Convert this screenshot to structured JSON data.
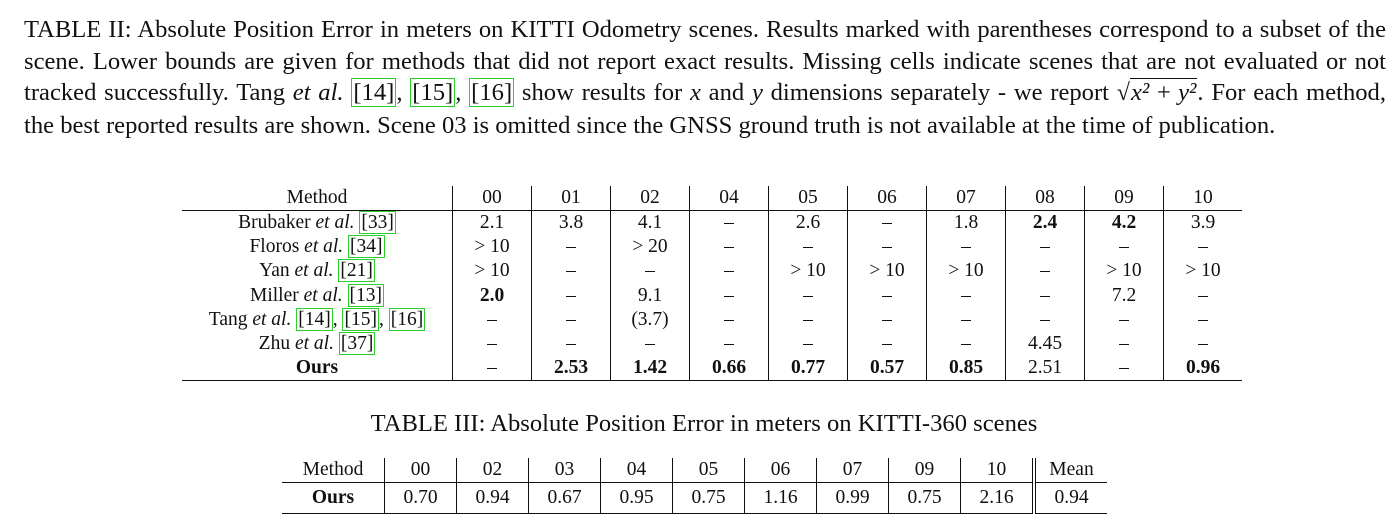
{
  "table2": {
    "caption": {
      "p1": "TABLE II: Absolute Position Error in meters on KITTI Odometry scenes. Results marked with parentheses correspond to a subset of the scene. Lower bounds are given for methods that did not report exact results. Missing cells indicate scenes that are not evaluated or not tracked successfully. Tang ",
      "etal": "et al.",
      "cite1": "[14]",
      "comma1": ", ",
      "cite2": "[15]",
      "comma2": ", ",
      "cite3": "[16]",
      "p2": " show results for ",
      "x": "x",
      "and": " and ",
      "y": "y",
      "p3": " dimensions separately - we report ",
      "sqrt_text": "x² + y²",
      "p4": ". For each method, the best reported results are shown. Scene 03 is omitted since the GNSS ground truth is not available at the time of publication."
    },
    "header": [
      "Method",
      "00",
      "01",
      "02",
      "04",
      "05",
      "06",
      "07",
      "08",
      "09",
      "10"
    ],
    "rows": [
      {
        "name": "Brubaker",
        "etal": "et al.",
        "cites": [
          "[33]"
        ],
        "cells": [
          "2.1",
          "3.8",
          "4.1",
          "–",
          "2.6",
          "–",
          "1.8",
          "2.4",
          "4.2",
          "3.9"
        ],
        "bold_cells": [
          7,
          8
        ]
      },
      {
        "name": "Floros",
        "etal": "et al.",
        "cites": [
          "[34]"
        ],
        "cells": [
          "> 10",
          "–",
          "> 20",
          "–",
          "–",
          "–",
          "–",
          "–",
          "–",
          "–"
        ],
        "bold_cells": []
      },
      {
        "name": "Yan",
        "etal": "et al.",
        "cites": [
          "[21]"
        ],
        "cells": [
          "> 10",
          "–",
          "–",
          "–",
          "> 10",
          "> 10",
          "> 10",
          "–",
          "> 10",
          "> 10"
        ],
        "bold_cells": []
      },
      {
        "name": "Miller",
        "etal": "et al.",
        "cites": [
          "[13]"
        ],
        "cells": [
          "2.0",
          "–",
          "9.1",
          "–",
          "–",
          "–",
          "–",
          "–",
          "7.2",
          "–"
        ],
        "bold_cells": [
          0
        ]
      },
      {
        "name": "Tang",
        "etal": "et al.",
        "cites": [
          "[14]",
          "[15]",
          "[16]"
        ],
        "cells": [
          "–",
          "–",
          "(3.7)",
          "–",
          "–",
          "–",
          "–",
          "–",
          "–",
          "–"
        ],
        "bold_cells": []
      },
      {
        "name": "Zhu",
        "etal": "et al.",
        "cites": [
          "[37]"
        ],
        "cells": [
          "–",
          "–",
          "–",
          "–",
          "–",
          "–",
          "–",
          "4.45",
          "–",
          "–"
        ],
        "bold_cells": []
      },
      {
        "name": "Ours",
        "etal": "",
        "cites": [],
        "cells": [
          "–",
          "2.53",
          "1.42",
          "0.66",
          "0.77",
          "0.57",
          "0.85",
          "2.51",
          "–",
          "0.96"
        ],
        "bold_cells": [
          1,
          2,
          3,
          4,
          5,
          6,
          9
        ],
        "bold_name": true
      }
    ]
  },
  "table3": {
    "caption": "TABLE III: Absolute Position Error in meters on KITTI-360 scenes",
    "header": [
      "Method",
      "00",
      "02",
      "03",
      "04",
      "05",
      "06",
      "07",
      "09",
      "10",
      "Mean"
    ],
    "rows": [
      {
        "name": "Ours",
        "cells": [
          "0.70",
          "0.94",
          "0.67",
          "0.95",
          "0.75",
          "1.16",
          "0.99",
          "0.75",
          "2.16",
          "0.94"
        ]
      }
    ]
  }
}
